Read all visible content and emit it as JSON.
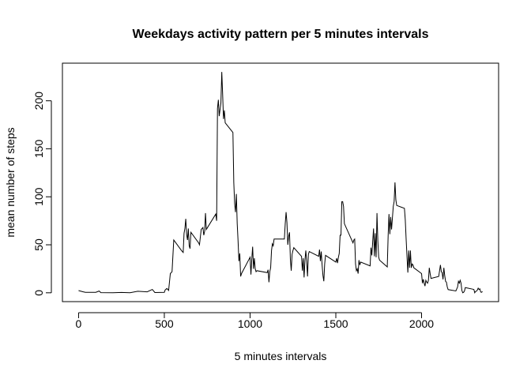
{
  "chart_data": {
    "type": "line",
    "title": "Weekdays activity pattern per 5 minutes intervals",
    "xlabel": "5 minutes intervals",
    "ylabel": "mean number of steps",
    "color": "#000000",
    "x": [
      0,
      25,
      40,
      100,
      120,
      130,
      200,
      250,
      300,
      345,
      400,
      430,
      445,
      500,
      505,
      515,
      525,
      535,
      545,
      555,
      600,
      610,
      615,
      620,
      625,
      630,
      635,
      640,
      645,
      650,
      655,
      700,
      705,
      715,
      725,
      730,
      735,
      740,
      745,
      800,
      805,
      810,
      815,
      820,
      830,
      835,
      840,
      845,
      850,
      855,
      900,
      905,
      910,
      915,
      920,
      925,
      930,
      935,
      940,
      945,
      950,
      1000,
      1005,
      1010,
      1015,
      1020,
      1025,
      1030,
      1035,
      1040,
      1100,
      1105,
      1110,
      1115,
      1120,
      1125,
      1130,
      1135,
      1140,
      1200,
      1205,
      1210,
      1215,
      1220,
      1225,
      1230,
      1235,
      1240,
      1245,
      1250,
      1255,
      1300,
      1305,
      1310,
      1315,
      1320,
      1325,
      1330,
      1335,
      1340,
      1345,
      1400,
      1405,
      1410,
      1415,
      1420,
      1425,
      1430,
      1435,
      1440,
      1500,
      1505,
      1510,
      1515,
      1520,
      1525,
      1530,
      1535,
      1540,
      1545,
      1550,
      1600,
      1605,
      1610,
      1615,
      1620,
      1625,
      1630,
      1635,
      1640,
      1645,
      1700,
      1705,
      1710,
      1715,
      1720,
      1725,
      1730,
      1735,
      1740,
      1745,
      1750,
      1755,
      1800,
      1805,
      1810,
      1815,
      1820,
      1825,
      1830,
      1835,
      1840,
      1845,
      1850,
      1855,
      1900,
      1905,
      1910,
      1915,
      1920,
      1925,
      1930,
      1935,
      1940,
      1945,
      1950,
      1955,
      2000,
      2005,
      2010,
      2015,
      2020,
      2025,
      2030,
      2035,
      2040,
      2045,
      2050,
      2055,
      2100,
      2105,
      2110,
      2115,
      2120,
      2125,
      2130,
      2135,
      2140,
      2145,
      2150,
      2155,
      2200,
      2205,
      2210,
      2215,
      2220,
      2225,
      2230,
      2235,
      2240,
      2245,
      2250,
      2255,
      2300,
      2305,
      2310,
      2315,
      2320,
      2325,
      2330,
      2335,
      2340,
      2345,
      2350,
      2355
    ],
    "values": [
      2.3,
      1.1,
      0.5,
      0.5,
      1.8,
      0.2,
      0,
      0.4,
      0.1,
      1.6,
      1.0,
      3.5,
      0.3,
      0.5,
      3.0,
      4.5,
      2.5,
      20,
      22,
      55,
      44,
      42,
      62,
      67,
      77,
      61,
      55,
      67,
      49,
      46,
      63,
      52,
      50,
      66,
      68,
      60,
      64,
      83,
      66,
      82,
      75,
      192,
      201,
      184,
      198,
      230,
      207,
      181,
      190,
      177,
      167,
      115,
      93,
      84,
      103,
      72,
      54,
      33,
      41,
      17,
      20,
      37,
      19,
      35,
      48,
      25,
      36,
      25,
      22,
      23,
      21,
      24,
      11,
      22,
      26,
      44,
      51,
      49,
      56,
      56,
      72,
      84,
      73,
      50,
      59,
      63,
      35,
      23,
      40,
      44,
      47,
      38,
      23,
      36,
      16,
      34,
      44,
      33,
      17,
      40,
      43,
      38,
      45,
      33,
      43,
      29,
      18,
      12,
      30,
      39,
      32,
      36,
      31,
      37,
      41,
      60,
      60,
      95,
      95,
      90,
      72,
      52,
      55,
      56,
      30,
      23,
      25,
      20,
      34,
      29,
      32,
      28,
      47,
      39,
      53,
      67,
      38,
      62,
      37,
      83,
      54,
      37,
      34,
      27,
      59,
      82,
      61,
      79,
      66,
      78,
      90,
      95,
      115,
      97,
      91,
      88,
      76,
      56,
      38,
      21,
      44,
      26,
      44,
      26,
      30,
      29,
      26,
      20,
      10,
      14,
      10,
      7,
      13,
      11,
      10,
      13,
      26,
      20,
      15,
      17,
      23,
      29,
      22,
      21,
      14,
      26,
      18,
      12,
      11,
      6,
      3.3,
      1.9,
      4,
      6,
      12,
      10,
      13,
      10,
      2.5,
      0,
      0.5,
      1.8,
      5.4,
      3.7,
      3.4,
      0,
      1.4,
      1.7,
      2.7,
      4.8,
      3.4,
      4.1,
      0.8,
      0.5,
      1.4
    ],
    "xlim": [
      -94.2,
      2449.2
    ],
    "ylim": [
      -9.2,
      239.2
    ],
    "xticks": [
      0,
      500,
      1000,
      1500,
      2000
    ],
    "yticks": [
      0,
      50,
      100,
      150,
      200
    ]
  }
}
